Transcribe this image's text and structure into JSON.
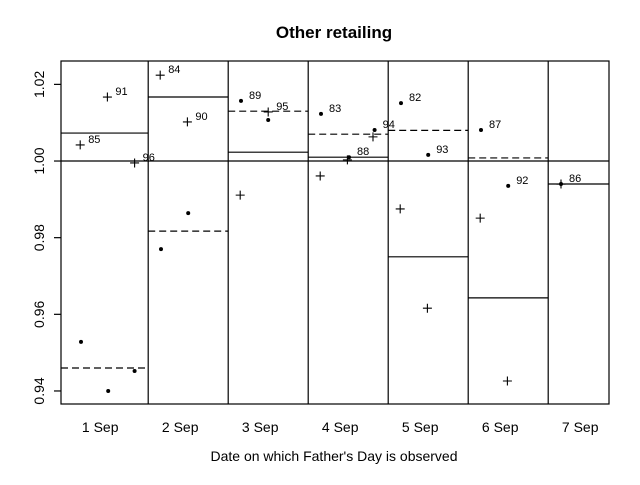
{
  "chart_data": {
    "type": "scatter",
    "title": "Other retailing",
    "xlabel": "Date on which Father's Day is observed",
    "ylabel": "",
    "categories": [
      "1 Sep",
      "2 Sep",
      "3 Sep",
      "4 Sep",
      "5 Sep",
      "6 Sep",
      "7 Sep"
    ],
    "xlim": [
      0.51,
      7.36
    ],
    "ylim": [
      0.9366,
      1.0261
    ],
    "yticks": [
      0.94,
      0.96,
      0.98,
      1.0,
      1.02
    ],
    "ytick_labels": [
      "0.94",
      "0.96",
      "0.98",
      "1.00",
      "1.02"
    ],
    "reference_line": 1.0,
    "panel_boundaries": [
      1.6,
      2.6,
      3.6,
      4.6,
      5.6,
      6.6
    ],
    "solid_levels": [
      1.0073,
      1.0167,
      1.0023,
      1.001,
      0.975,
      0.9643,
      0.994
    ],
    "dashed_levels": [
      0.946,
      0.9817,
      1.013,
      1.007,
      1.008,
      1.0008,
      null
    ],
    "points": [
      {
        "x": 1.09,
        "y": 1.0167,
        "marker": "plus",
        "label": "91"
      },
      {
        "x": 0.75,
        "y": 1.0042,
        "marker": "plus",
        "label": "85"
      },
      {
        "x": 1.43,
        "y": 0.9995,
        "marker": "plus",
        "label": "96"
      },
      {
        "x": 0.76,
        "y": 0.9528,
        "marker": "dot",
        "label": ""
      },
      {
        "x": 1.1,
        "y": 0.94,
        "marker": "dot",
        "label": ""
      },
      {
        "x": 1.43,
        "y": 0.9452,
        "marker": "dot",
        "label": ""
      },
      {
        "x": 1.75,
        "y": 1.0224,
        "marker": "plus",
        "label": "84"
      },
      {
        "x": 2.09,
        "y": 1.0102,
        "marker": "plus",
        "label": "90"
      },
      {
        "x": 2.1,
        "y": 0.9864,
        "marker": "dot",
        "label": ""
      },
      {
        "x": 1.76,
        "y": 0.977,
        "marker": "dot",
        "label": ""
      },
      {
        "x": 2.75,
        "y": 0.9911,
        "marker": "plus",
        "label": ""
      },
      {
        "x": 2.76,
        "y": 1.0157,
        "marker": "dot",
        "label": "89"
      },
      {
        "x": 3.1,
        "y": 1.0128,
        "marker": "plus",
        "label": "95"
      },
      {
        "x": 3.1,
        "y": 1.0107,
        "marker": "dot",
        "label": ""
      },
      {
        "x": 3.76,
        "y": 1.0123,
        "marker": "dot",
        "label": "83"
      },
      {
        "x": 3.75,
        "y": 0.9961,
        "marker": "plus",
        "label": ""
      },
      {
        "x": 4.43,
        "y": 1.0081,
        "marker": "dot",
        "label": "94"
      },
      {
        "x": 4.41,
        "y": 1.0063,
        "marker": "plus",
        "label": ""
      },
      {
        "x": 4.11,
        "y": 1.001,
        "marker": "dot",
        "label": "88"
      },
      {
        "x": 4.09,
        "y": 1.0003,
        "marker": "plus",
        "label": ""
      },
      {
        "x": 4.76,
        "y": 1.0151,
        "marker": "dot",
        "label": "82"
      },
      {
        "x": 4.75,
        "y": 0.9875,
        "marker": "plus",
        "label": ""
      },
      {
        "x": 5.1,
        "y": 1.0016,
        "marker": "dot",
        "label": "93"
      },
      {
        "x": 5.09,
        "y": 0.9616,
        "marker": "plus",
        "label": ""
      },
      {
        "x": 5.76,
        "y": 1.0081,
        "marker": "dot",
        "label": "87"
      },
      {
        "x": 5.75,
        "y": 0.9851,
        "marker": "plus",
        "label": ""
      },
      {
        "x": 6.1,
        "y": 0.9935,
        "marker": "dot",
        "label": "92"
      },
      {
        "x": 6.09,
        "y": 0.9426,
        "marker": "plus",
        "label": ""
      },
      {
        "x": 6.76,
        "y": 0.994,
        "marker": "dot",
        "label": "86"
      },
      {
        "x": 6.76,
        "y": 0.994,
        "marker": "plus",
        "label": ""
      }
    ]
  }
}
